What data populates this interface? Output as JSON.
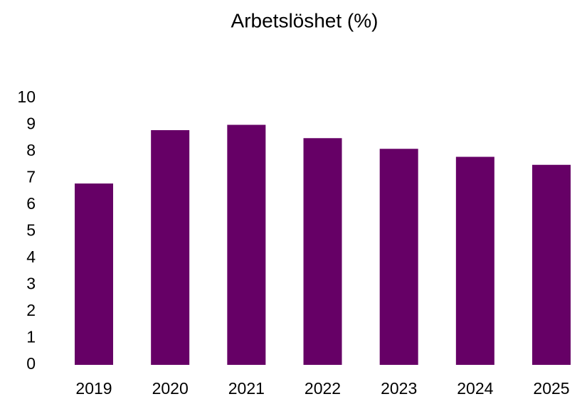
{
  "chart_data": {
    "type": "bar",
    "title": "Arbetslöshet (%)",
    "categories": [
      "2019",
      "2020",
      "2021",
      "2022",
      "2023",
      "2024",
      "2025"
    ],
    "values": [
      6.8,
      8.8,
      9.0,
      8.5,
      8.1,
      7.8,
      7.5
    ],
    "color": "#660066",
    "ylim": [
      0,
      10
    ],
    "yticks": [
      0,
      1,
      2,
      3,
      4,
      5,
      6,
      7,
      8,
      9,
      10
    ],
    "grid": false
  }
}
